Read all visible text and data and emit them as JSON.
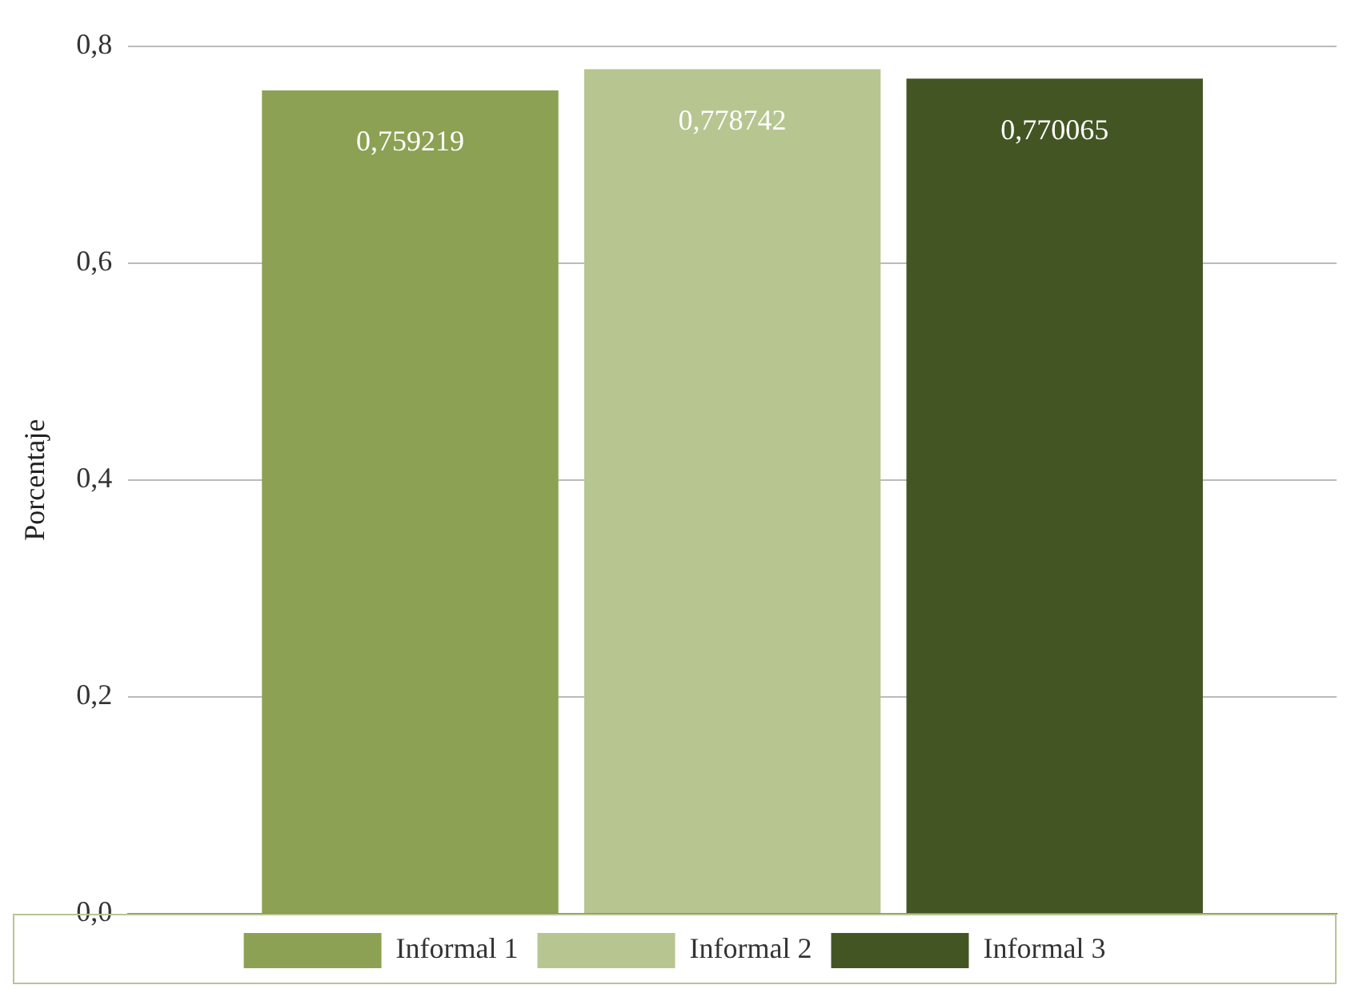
{
  "chart_data": {
    "type": "bar",
    "ylabel": "Porcentaje",
    "categories": [
      null
    ],
    "series": [
      {
        "name": "Informal 1",
        "color": "#8da154",
        "values": [
          0.759219
        ],
        "value_labels": [
          "0,759219"
        ]
      },
      {
        "name": "Informal 2",
        "color": "#b7c591",
        "values": [
          0.778742
        ],
        "value_labels": [
          "0,778742"
        ]
      },
      {
        "name": "Informal 3",
        "color": "#445524",
        "values": [
          0.770065
        ],
        "value_labels": [
          "0,770065"
        ]
      }
    ],
    "ylim": [
      0,
      0.8
    ],
    "yticks": [
      {
        "value": 0,
        "label": "0,0"
      },
      {
        "value": 0.2,
        "label": "0,2"
      },
      {
        "value": 0.4,
        "label": "0,4"
      },
      {
        "value": 0.6,
        "label": "0,6"
      },
      {
        "value": 0.8,
        "label": "0,8"
      }
    ],
    "grid": "y",
    "legend": "bottom"
  }
}
